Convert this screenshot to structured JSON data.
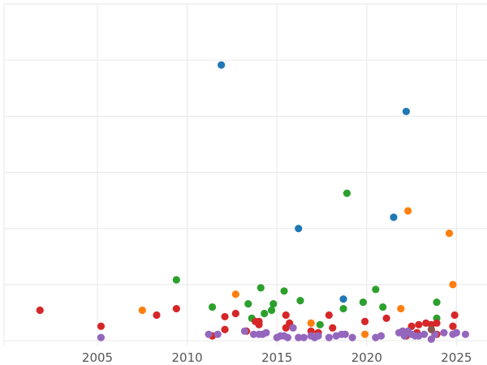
{
  "chart_data": {
    "type": "scatter",
    "title": "",
    "xlabel": "",
    "ylabel": "",
    "x_ticks": [
      2005,
      2010,
      2015,
      2020,
      2025
    ],
    "xlim": [
      1999.8,
      2026.7
    ],
    "ylim": [
      -3,
      210
    ],
    "y_gridlines": [
      0,
      35,
      70,
      105,
      140,
      175,
      210
    ],
    "grid": true,
    "legend": "none",
    "series": [
      {
        "color": "#1f77b4",
        "points": [
          [
            2011.9,
            172
          ],
          [
            2022.2,
            143
          ],
          [
            2016.2,
            70
          ],
          [
            2021.5,
            77
          ],
          [
            2018.7,
            26
          ]
        ]
      },
      {
        "color": "#ff7f0e",
        "points": [
          [
            2007.5,
            19
          ],
          [
            2012.7,
            29
          ],
          [
            2016.9,
            11
          ],
          [
            2019.9,
            4
          ],
          [
            2021.9,
            20
          ],
          [
            2022.3,
            81
          ],
          [
            2024.6,
            67
          ],
          [
            2024.8,
            35
          ]
        ]
      },
      {
        "color": "#2ca02c",
        "points": [
          [
            2009.4,
            38
          ],
          [
            2011.4,
            21
          ],
          [
            2013.4,
            23
          ],
          [
            2013.6,
            14
          ],
          [
            2014.1,
            33
          ],
          [
            2014.3,
            17
          ],
          [
            2014.7,
            19
          ],
          [
            2014.8,
            23
          ],
          [
            2015.4,
            31
          ],
          [
            2016.3,
            25
          ],
          [
            2017.4,
            10
          ],
          [
            2018.7,
            20
          ],
          [
            2018.9,
            92
          ],
          [
            2019.8,
            24
          ],
          [
            2020.5,
            32
          ],
          [
            2020.9,
            21
          ],
          [
            2023.9,
            24
          ],
          [
            2023.9,
            14
          ]
        ]
      },
      {
        "color": "#d62728",
        "points": [
          [
            2001.8,
            19
          ],
          [
            2005.2,
            9
          ],
          [
            2008.3,
            16
          ],
          [
            2009.4,
            20
          ],
          [
            2011.4,
            3
          ],
          [
            2012.1,
            15
          ],
          [
            2012.1,
            7
          ],
          [
            2012.7,
            17
          ],
          [
            2013.3,
            6
          ],
          [
            2013.8,
            12
          ],
          [
            2014.0,
            10
          ],
          [
            2014.0,
            12
          ],
          [
            2015.5,
            16
          ],
          [
            2015.5,
            8
          ],
          [
            2015.7,
            11
          ],
          [
            2016.9,
            6
          ],
          [
            2017.3,
            5
          ],
          [
            2017.9,
            16
          ],
          [
            2018.1,
            8
          ],
          [
            2019.9,
            12
          ],
          [
            2021.1,
            14
          ],
          [
            2022.2,
            3
          ],
          [
            2022.5,
            9
          ],
          [
            2022.8,
            5
          ],
          [
            2022.9,
            10
          ],
          [
            2023.3,
            11
          ],
          [
            2023.6,
            10
          ],
          [
            2023.9,
            4
          ],
          [
            2023.9,
            11
          ],
          [
            2024.8,
            9
          ],
          [
            2024.9,
            16
          ]
        ]
      },
      {
        "color": "#9467bd",
        "points": [
          [
            2005.2,
            2
          ],
          [
            2011.2,
            4
          ],
          [
            2011.7,
            4
          ],
          [
            2013.2,
            6
          ],
          [
            2013.7,
            4
          ],
          [
            2014.0,
            4
          ],
          [
            2014.2,
            4
          ],
          [
            2014.4,
            5
          ],
          [
            2015.0,
            2
          ],
          [
            2015.2,
            3
          ],
          [
            2015.4,
            3
          ],
          [
            2015.6,
            2
          ],
          [
            2015.9,
            8
          ],
          [
            2016.2,
            2
          ],
          [
            2016.5,
            2
          ],
          [
            2016.9,
            3
          ],
          [
            2017.1,
            2
          ],
          [
            2017.3,
            3
          ],
          [
            2017.9,
            2
          ],
          [
            2018.3,
            3
          ],
          [
            2018.6,
            4
          ],
          [
            2018.8,
            4
          ],
          [
            2019.2,
            2
          ],
          [
            2020.5,
            2
          ],
          [
            2020.8,
            3
          ],
          [
            2021.8,
            5
          ],
          [
            2022.0,
            6
          ],
          [
            2022.1,
            3
          ],
          [
            2022.3,
            6
          ],
          [
            2022.5,
            4
          ],
          [
            2022.7,
            3
          ],
          [
            2022.9,
            3
          ],
          [
            2023.2,
            4
          ],
          [
            2023.6,
            1
          ],
          [
            2023.8,
            4
          ],
          [
            2024.3,
            5
          ],
          [
            2024.8,
            4
          ],
          [
            2025.0,
            5
          ],
          [
            2025.5,
            4
          ]
        ]
      },
      {
        "color": "#8c564b",
        "points": [
          [
            2023.6,
            7
          ]
        ]
      }
    ]
  }
}
